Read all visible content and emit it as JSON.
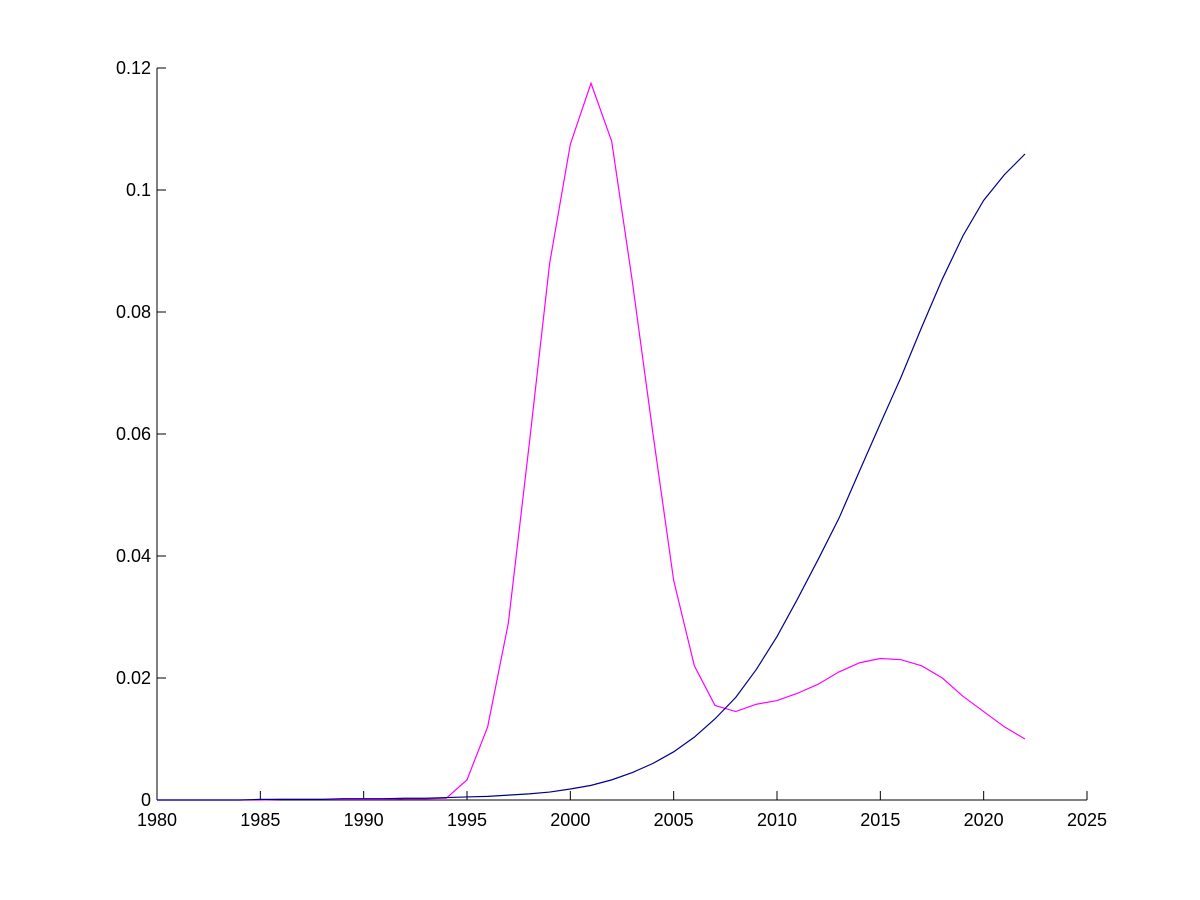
{
  "chart_data": {
    "type": "line",
    "x": [
      1980,
      1981,
      1982,
      1983,
      1984,
      1985,
      1986,
      1987,
      1988,
      1989,
      1990,
      1991,
      1992,
      1993,
      1994,
      1995,
      1996,
      1997,
      1998,
      1999,
      2000,
      2001,
      2002,
      2003,
      2004,
      2005,
      2006,
      2007,
      2008,
      2009,
      2010,
      2011,
      2012,
      2013,
      2014,
      2015,
      2016,
      2017,
      2018,
      2019,
      2020,
      2021,
      2022
    ],
    "series": [
      {
        "color": "#ff00ff",
        "values": [
          0,
          0,
          0,
          0,
          0,
          0,
          0.0001,
          0.0001,
          0.0001,
          0.0001,
          0.0001,
          0.0001,
          0.0002,
          0.0002,
          0.0003,
          0.0033,
          0.012,
          0.029,
          0.058,
          0.088,
          0.1075,
          0.1175,
          0.108,
          0.085,
          0.06,
          0.036,
          0.022,
          0.0155,
          0.0145,
          0.0157,
          0.0163,
          0.0175,
          0.019,
          0.021,
          0.0225,
          0.0232,
          0.023,
          0.022,
          0.02,
          0.017,
          0.0145,
          0.012,
          0.01
        ]
      },
      {
        "color": "#00008b",
        "values": [
          0,
          0,
          0,
          0,
          0,
          0.0001,
          0.0001,
          0.0001,
          0.0001,
          0.0002,
          0.0002,
          0.0002,
          0.0003,
          0.0003,
          0.0004,
          0.0005,
          0.0006,
          0.0008,
          0.001,
          0.0013,
          0.0018,
          0.0024,
          0.0033,
          0.0045,
          0.006,
          0.0079,
          0.0103,
          0.0133,
          0.0168,
          0.0214,
          0.0268,
          0.033,
          0.0395,
          0.0462,
          0.054,
          0.0617,
          0.0693,
          0.0775,
          0.0854,
          0.0925,
          0.0983,
          0.1025,
          0.1059
        ]
      }
    ],
    "xlim": [
      1980,
      2025
    ],
    "xticks": [
      1980,
      1985,
      1990,
      1995,
      2000,
      2005,
      2010,
      2015,
      2020,
      2025
    ],
    "ylim": [
      0,
      0.12
    ],
    "yticks": [
      0,
      0.02,
      0.04,
      0.06,
      0.08,
      0.1,
      0.12
    ]
  }
}
